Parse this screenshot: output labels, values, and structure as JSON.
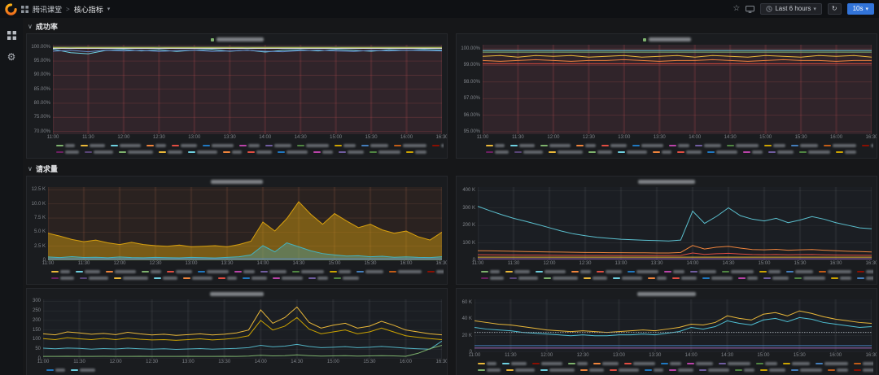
{
  "topbar": {
    "breadcrumb": {
      "app": "腾讯课堂",
      "separator": ">",
      "dashboard": "核心指标",
      "caret": "▾"
    },
    "time_picker": {
      "label": "Last 6 hours",
      "caret": "▾"
    },
    "refresh_interval": {
      "label": "10s",
      "caret": "▾"
    }
  },
  "rows": {
    "success": "成功率",
    "requests": "请求量"
  },
  "time_ticks": [
    "11:00",
    "11:30",
    "12:00",
    "12:30",
    "13:00",
    "13:30",
    "14:00",
    "14:30",
    "15:00",
    "15:30",
    "16:00",
    "16:30"
  ],
  "palette": [
    "#7eb26d",
    "#eab839",
    "#6ed0e0",
    "#ef843c",
    "#e24d42",
    "#1f78c1",
    "#ba43a9",
    "#705da0",
    "#508642",
    "#cca300",
    "#447ebc",
    "#c15c17",
    "#890f02",
    "#0a437c",
    "#6d1f62",
    "#584477"
  ],
  "charts": [
    {
      "name": "success-rate-left",
      "type": "line",
      "ymin": 69,
      "ymax": 100.8,
      "ylabel_w": 32,
      "title_dot": true,
      "title_w": 58,
      "plot_bg": "#30242a",
      "grid_color": "rgba(224,90,90,0.28)",
      "y_ticks": [
        {
          "label": "100.00%",
          "value": 100
        },
        {
          "label": "95.00%",
          "value": 95
        },
        {
          "label": "90.00%",
          "value": 90
        },
        {
          "label": "85.00%",
          "value": 85
        },
        {
          "label": "80.00%",
          "value": 80
        },
        {
          "label": "75.00%",
          "value": 75
        },
        {
          "label": "70.00%",
          "value": 70
        }
      ],
      "series": [
        {
          "id": "series-1",
          "color": "#6ed0e0",
          "values": [
            99.2,
            98.0,
            97.6,
            98.8,
            99.1,
            98.6,
            99.0,
            98.4,
            98.9,
            99.1,
            98.5,
            98.9,
            98.2,
            98.8,
            99.0,
            98.6,
            99.1,
            98.8,
            98.5,
            99.0,
            98.8,
            99.1,
            98.9
          ]
        },
        {
          "id": "series-2",
          "color": "#eab839",
          "values": [
            99.7,
            99.6,
            99.7,
            99.8,
            99.7,
            99.7,
            99.6,
            99.7,
            99.8,
            99.7,
            99.7,
            99.6,
            99.7,
            99.7,
            99.8,
            99.7,
            99.6,
            99.7,
            99.7,
            99.8,
            99.7,
            99.7,
            99.7
          ]
        },
        {
          "id": "series-3",
          "color": "#7eb26d",
          "flat": 99.9,
          "n": 23
        },
        {
          "id": "series-4",
          "color": "#6189c9",
          "values": [
            98.5,
            98.8,
            98.3,
            98.9,
            98.6,
            98.8,
            98.4,
            98.7,
            98.9,
            98.4,
            98.6,
            98.8,
            98.5,
            98.3,
            98.7,
            98.9,
            98.6,
            98.4,
            98.8,
            98.6,
            98.9,
            98.7,
            98.6
          ]
        },
        {
          "id": "series-5",
          "color": "#d8d9da",
          "flat": 99.5,
          "n": 23
        }
      ],
      "legend_rows": [
        [
          0,
          1,
          2,
          3,
          4,
          5,
          6,
          7,
          8,
          9,
          10,
          11,
          12,
          13
        ],
        [
          14,
          15,
          0,
          1,
          2,
          3,
          4,
          5,
          6,
          7,
          8,
          9
        ]
      ]
    },
    {
      "name": "success-rate-right",
      "type": "line",
      "ymin": 94.85,
      "ymax": 100.25,
      "ylabel_w": 32,
      "title_dot": true,
      "title_w": 52,
      "plot_bg": "#30242a",
      "grid_color": "rgba(224,90,90,0.28)",
      "y_ticks": [
        {
          "label": "100.00%",
          "value": 100
        },
        {
          "label": "99.00%",
          "value": 99
        },
        {
          "label": "98.00%",
          "value": 98
        },
        {
          "label": "97.00%",
          "value": 97
        },
        {
          "label": "96.00%",
          "value": 96
        },
        {
          "label": "95.00%",
          "value": 95
        }
      ],
      "series": [
        {
          "id": "series-1",
          "color": "#6ed0e0",
          "flat": 99.9,
          "n": 23
        },
        {
          "id": "series-2",
          "color": "#eab839",
          "values": [
            99.55,
            99.6,
            99.5,
            99.6,
            99.55,
            99.6,
            99.5,
            99.55,
            99.6,
            99.5,
            99.55,
            99.6,
            99.5,
            99.6,
            99.55,
            99.5,
            99.6,
            99.55,
            99.5,
            99.6,
            99.55,
            99.6,
            99.5
          ]
        },
        {
          "id": "series-3",
          "color": "#ef843c",
          "values": [
            99.3,
            99.25,
            99.3,
            99.35,
            99.3,
            99.25,
            99.3,
            99.3,
            99.35,
            99.3,
            99.25,
            99.3,
            99.3,
            99.35,
            99.3,
            99.25,
            99.3,
            99.35,
            99.3,
            99.3,
            99.25,
            99.3,
            99.3
          ]
        },
        {
          "id": "series-4",
          "color": "#7eb26d",
          "flat": 99.8,
          "n": 23
        },
        {
          "id": "series-5",
          "color": "#e24d42",
          "flat": 99.1,
          "n": 23
        }
      ],
      "legend_rows": [
        [
          1,
          2,
          0,
          3,
          4,
          5,
          6,
          7,
          8,
          9,
          10,
          11,
          12,
          13
        ],
        [
          14,
          15,
          1,
          0,
          2,
          3,
          4,
          5,
          6,
          7,
          8,
          9
        ]
      ]
    },
    {
      "name": "request-volume-left",
      "type": "area",
      "ymin": 0,
      "ymax": 13000,
      "ylabel_w": 26,
      "title_dot": false,
      "title_w": 64,
      "plot_bg": "#2a2220",
      "grid_color": "rgba(220,130,95,0.22)",
      "y_ticks": [
        {
          "label": "12.5 K",
          "value": 12500
        },
        {
          "label": "10.0 K",
          "value": 10000
        },
        {
          "label": "7.5 K",
          "value": 7500
        },
        {
          "label": "5.0 K",
          "value": 5000
        },
        {
          "label": "2.5 K",
          "value": 2500
        },
        {
          "label": "0",
          "value": 0
        }
      ],
      "series": [
        {
          "id": "series-1",
          "color": "#d9a10e",
          "fill": 0.45,
          "values": [
            4800,
            4300,
            3700,
            3300,
            3600,
            3100,
            2800,
            3200,
            2800,
            2600,
            2500,
            2700,
            2400,
            2500,
            2600,
            2400,
            2800,
            3400,
            6800,
            5200,
            7400,
            10400,
            8200,
            6400,
            8300,
            7000,
            5800,
            6400,
            5400,
            4800,
            5200,
            4200,
            3600,
            5000
          ]
        },
        {
          "id": "series-2",
          "color": "#43b3c2",
          "fill": 0.35,
          "values": [
            600,
            480,
            650,
            500,
            550,
            450,
            600,
            480,
            450,
            520,
            470,
            430,
            520,
            470,
            420,
            520,
            640,
            950,
            2600,
            1500,
            3100,
            2400,
            1700,
            1200,
            950,
            750,
            820,
            640,
            720,
            540,
            620,
            520,
            480,
            640
          ]
        },
        {
          "id": "series-3",
          "color": "#6189c9",
          "flat": 250,
          "n": 34
        }
      ],
      "legend_rows": [
        [
          1,
          2,
          3,
          0,
          4,
          5,
          6,
          7,
          8,
          9,
          10,
          11,
          12,
          13
        ],
        [
          14,
          15,
          1,
          2,
          3,
          4,
          5,
          6,
          7,
          8
        ]
      ]
    },
    {
      "name": "request-volume-right",
      "type": "line",
      "ymin": 0,
      "ymax": 420000,
      "ylabel_w": 26,
      "title_dot": false,
      "title_w": 70,
      "plot_bg": "#1b1e23",
      "grid_color": "rgba(255,255,255,0.09)",
      "y_ticks": [
        {
          "label": "400 K",
          "value": 400000
        },
        {
          "label": "300 K",
          "value": 300000
        },
        {
          "label": "200 K",
          "value": 200000
        },
        {
          "label": "100 K",
          "value": 100000
        },
        {
          "label": "0",
          "value": 0
        }
      ],
      "series": [
        {
          "id": "series-1",
          "color": "#5bc0cf",
          "values": [
            310000,
            285000,
            262000,
            241000,
            224000,
            206000,
            187000,
            168000,
            152000,
            141000,
            132000,
            126000,
            121000,
            118000,
            115000,
            113000,
            111000,
            116000,
            282000,
            212000,
            252000,
            301000,
            256000,
            236000,
            226000,
            241000,
            216000,
            231000,
            251000,
            236000,
            216000,
            201000,
            186000,
            181000
          ]
        },
        {
          "id": "series-2",
          "color": "#ef843c",
          "values": [
            55000,
            54000,
            53000,
            52000,
            50000,
            49000,
            48000,
            47000,
            46000,
            45000,
            45000,
            44000,
            44000,
            43000,
            43000,
            42000,
            42000,
            45000,
            85000,
            65000,
            75000,
            80000,
            70000,
            62000,
            60000,
            63000,
            58000,
            60000,
            62000,
            58000,
            55000,
            52000,
            50000,
            48000
          ]
        },
        {
          "id": "series-3",
          "color": "#e24d42",
          "values": [
            32000,
            31500,
            31000,
            30500,
            30000,
            29500,
            29000,
            28800,
            28500,
            28200,
            28000,
            27800,
            27600,
            27500,
            27400,
            27300,
            27200,
            27800,
            42000,
            34000,
            38000,
            40000,
            36000,
            33000,
            32000,
            33500,
            31500,
            32500,
            33500,
            31500,
            30500,
            29500,
            29000,
            28500
          ]
        },
        {
          "id": "series-4",
          "color": "#eab839",
          "flat": 18000,
          "n": 34
        },
        {
          "id": "series-5",
          "color": "#9f6ab8",
          "flat": 9000,
          "n": 34
        }
      ],
      "legend_rows": [
        [
          0,
          1,
          2,
          3,
          4,
          5,
          6,
          7,
          8,
          9,
          10,
          11,
          12,
          13
        ],
        [
          14,
          15,
          0,
          1,
          2,
          3,
          4,
          5,
          6,
          7,
          8,
          9,
          10,
          11
        ]
      ]
    },
    {
      "name": "requests-detail-left",
      "type": "line",
      "ymin": 0,
      "ymax": 310,
      "ylabel_w": 20,
      "title_dot": false,
      "title_w": 66,
      "plot_bg": "#1b1e23",
      "grid_color": "rgba(255,255,255,0.09)",
      "y_ticks": [
        {
          "label": "300",
          "value": 300
        },
        {
          "label": "250",
          "value": 250
        },
        {
          "label": "200",
          "value": 200
        },
        {
          "label": "150",
          "value": 150
        },
        {
          "label": "100",
          "value": 100
        },
        {
          "label": "50",
          "value": 50
        },
        {
          "label": "0",
          "value": 0
        }
      ],
      "series": [
        {
          "id": "series-1",
          "color": "#eab839",
          "values": [
            130,
            125,
            140,
            135,
            128,
            132,
            126,
            138,
            130,
            124,
            128,
            122,
            126,
            130,
            124,
            128,
            135,
            150,
            255,
            185,
            215,
            270,
            190,
            160,
            175,
            185,
            160,
            170,
            195,
            175,
            150,
            140,
            130,
            125
          ]
        },
        {
          "id": "series-2",
          "color": "#cca300",
          "values": [
            105,
            100,
            110,
            104,
            100,
            106,
            100,
            108,
            102,
            98,
            100,
            96,
            100,
            104,
            98,
            102,
            108,
            120,
            200,
            150,
            170,
            215,
            155,
            130,
            140,
            150,
            130,
            140,
            160,
            140,
            120,
            112,
            105,
            100
          ]
        },
        {
          "id": "series-3",
          "color": "#52b3c4",
          "values": [
            55,
            52,
            56,
            54,
            50,
            53,
            51,
            55,
            52,
            50,
            52,
            49,
            51,
            53,
            50,
            52,
            54,
            58,
            70,
            62,
            66,
            75,
            64,
            58,
            60,
            63,
            58,
            60,
            64,
            60,
            55,
            52,
            50,
            92
          ]
        },
        {
          "id": "series-4",
          "color": "#7eb26d",
          "values": [
            12,
            12,
            13,
            12,
            12,
            13,
            12,
            12,
            13,
            12,
            12,
            12,
            13,
            12,
            12,
            13,
            12,
            14,
            18,
            15,
            16,
            20,
            16,
            14,
            15,
            16,
            14,
            15,
            16,
            15,
            13,
            28,
            52,
            70
          ]
        }
      ],
      "legend_rows": [
        [
          5,
          2
        ]
      ]
    },
    {
      "name": "requests-detail-right",
      "type": "line",
      "ymin": 0,
      "ymax": 64000,
      "ylabel_w": 22,
      "title_dot": false,
      "title_w": 72,
      "plot_bg": "#1b1e23",
      "grid_color": "rgba(255,255,255,0.09)",
      "y_ticks": [
        {
          "label": "60 K",
          "value": 60000
        },
        {
          "label": "40 K",
          "value": 40000
        },
        {
          "label": "20 K",
          "value": 20000
        },
        {
          "label": "0",
          "value": 0
        }
      ],
      "series": [
        {
          "id": "series-1",
          "color": "#eab839",
          "values": [
            38000,
            36000,
            34000,
            33000,
            31000,
            29000,
            27000,
            26000,
            25000,
            26000,
            25000,
            24000,
            25000,
            26000,
            27000,
            26000,
            28000,
            30000,
            34000,
            33000,
            36000,
            44000,
            41000,
            39000,
            46000,
            48000,
            44000,
            50000,
            47000,
            43000,
            40000,
            38000,
            36000,
            35000
          ]
        },
        {
          "id": "series-2",
          "color": "#4fc0d4",
          "values": [
            30000,
            28000,
            27000,
            26000,
            24000,
            23000,
            22000,
            21000,
            20000,
            21000,
            20000,
            20000,
            21000,
            21000,
            22000,
            21000,
            23000,
            25000,
            30000,
            28000,
            31000,
            38000,
            35000,
            33000,
            39000,
            41000,
            37000,
            42000,
            40000,
            36000,
            34000,
            32000,
            30000,
            31000
          ]
        },
        {
          "id": "series-3",
          "color": "#9aa0a6",
          "flat": 24000,
          "n": 34,
          "dash": true
        },
        {
          "id": "series-4",
          "color": "#447ebc",
          "flat": 8000,
          "n": 34
        },
        {
          "id": "series-5",
          "color": "#9f6ab8",
          "flat": 5000,
          "n": 34
        }
      ],
      "legend_rows": [
        [
          1,
          2,
          12,
          0,
          3,
          4,
          5,
          6,
          7,
          8,
          9,
          10,
          11,
          13,
          14,
          15
        ],
        [
          0,
          1,
          2,
          3,
          4,
          5,
          6,
          7,
          8,
          9,
          10,
          11,
          12,
          13
        ]
      ]
    }
  ]
}
